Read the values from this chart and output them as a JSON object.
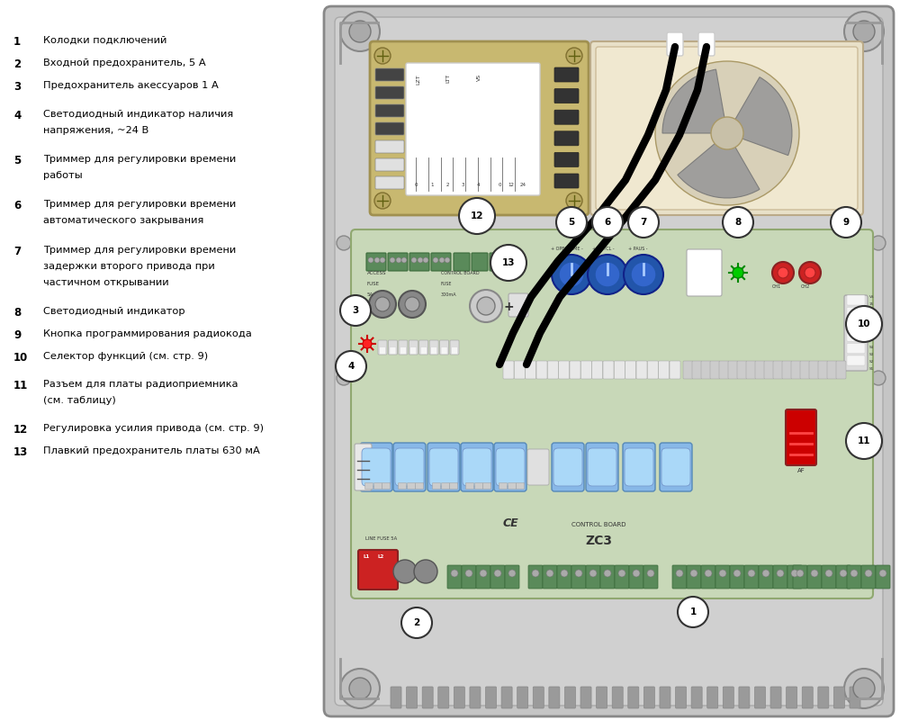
{
  "bg_color": "#ffffff",
  "panel_outer_color": "#c8c8c8",
  "panel_inner_color": "#d2d2d2",
  "pcb_color": "#c8d8b8",
  "module12_color": "#c8b870",
  "motor_box_color": "#e8e0c8",
  "labels": {
    "1": "Колодки подключений",
    "2": "Входной предохранитель, 5 А",
    "3": "Предохранитель акессуаров 1 А",
    "4": "Светодиодный индикатор наличия\nнапряжения, ~24 В",
    "5": "Триммер для регулировки времени\nработы",
    "6": "Триммер для регулировки времени\nавтоматического закрывания",
    "7": "Триммер для регулировки времени\nзадержки второго привода при\nчастичном открывании",
    "8": "Светодиодный индикатор",
    "9": "Кнопка программирования радиокода",
    "10": "Селектор функций (см. стр. 9)",
    "11": "Разъем для платы радиоприемника\n(см. таблицу)",
    "12": "Регулировка усилия привода (см. стр. 9)",
    "13": "Плавкий предохранитель платы 630 мА"
  }
}
